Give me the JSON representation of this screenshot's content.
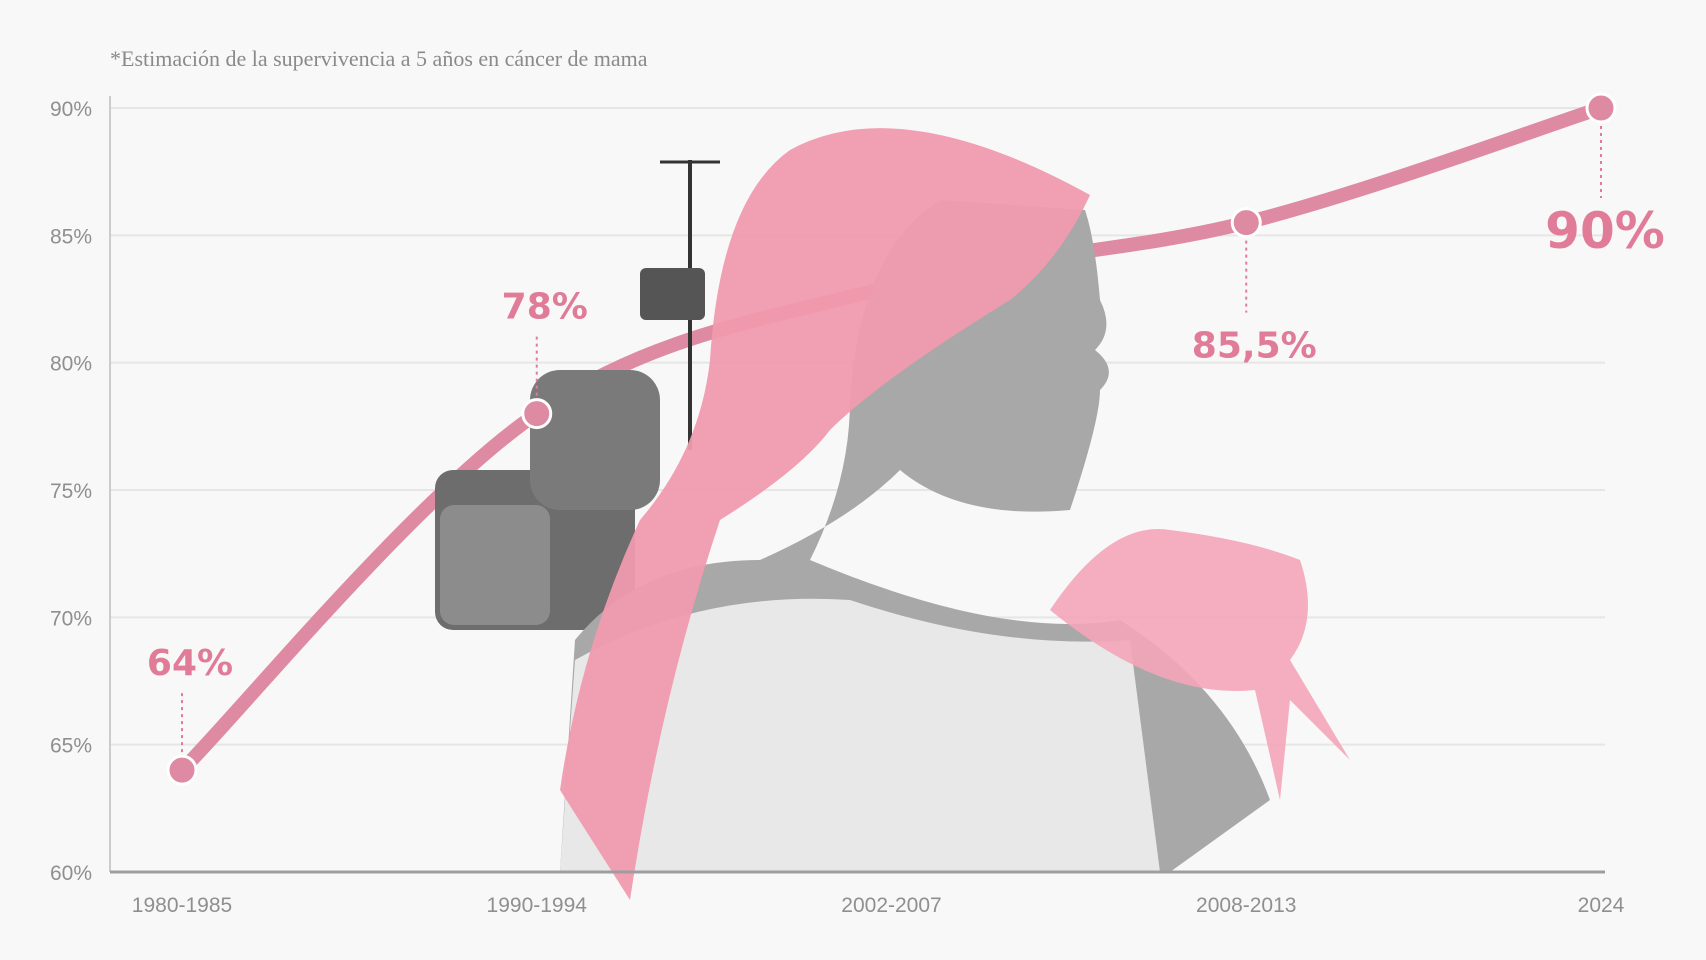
{
  "chart_data": {
    "type": "line",
    "title": "",
    "note": "*Estimación de la supervivencia a 5 años en cáncer de mama",
    "categories": [
      "1980-1985",
      "1990-1994",
      "2002-2007",
      "2008-2013",
      "2024"
    ],
    "values": [
      64,
      78,
      83,
      85.5,
      90
    ],
    "data_labels": [
      "64%",
      "78%",
      "",
      "85,5%",
      "90%"
    ],
    "ylim": [
      60,
      90
    ],
    "yticks": [
      60,
      65,
      70,
      75,
      80,
      85,
      90
    ],
    "ytick_labels": [
      "60%",
      "65%",
      "70%",
      "75%",
      "80%",
      "85%",
      "90%"
    ],
    "grid": true,
    "line_color": "#dd8aa2",
    "label_color": "#e07b98"
  }
}
